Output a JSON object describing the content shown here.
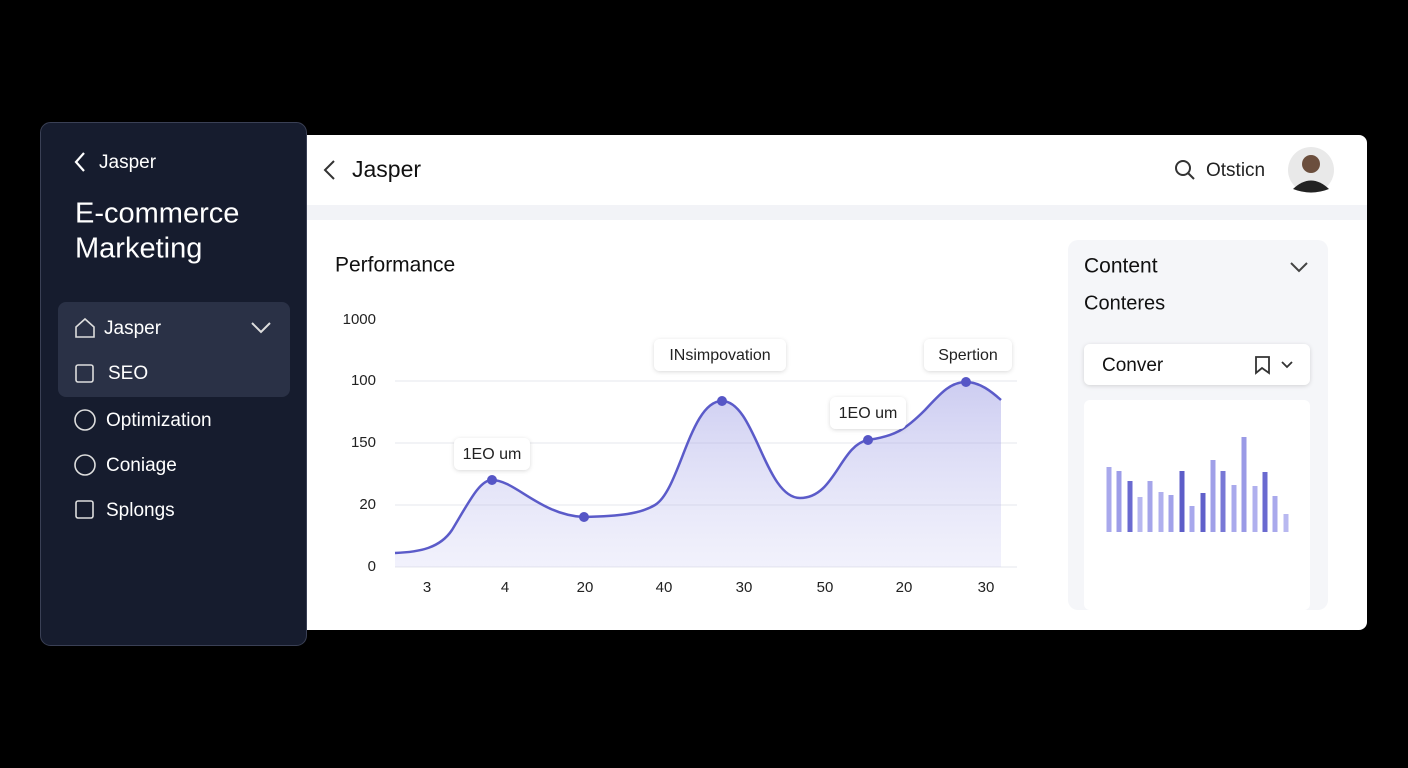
{
  "sidebar": {
    "back": "Jasper",
    "title_lines": [
      "E-commerce",
      "Marketing"
    ],
    "nav": [
      "Jasper",
      "SEO",
      "Optimization",
      "Coniage",
      "Splongs"
    ]
  },
  "header": {
    "title": "Jasper",
    "search": "Otsticn"
  },
  "performance": {
    "title": "Performance",
    "y_labels": [
      "1000",
      "100",
      "150",
      "20",
      "0"
    ],
    "x_labels": [
      "3",
      "4",
      "20",
      "40",
      "30",
      "50",
      "20",
      "30"
    ],
    "annotations": [
      "1EO um",
      "INsimpovation",
      "1EO um",
      "Spertion"
    ]
  },
  "content_panel": {
    "title": "Content",
    "subtitle": "Conteres",
    "dropdown": "Conver"
  }
}
